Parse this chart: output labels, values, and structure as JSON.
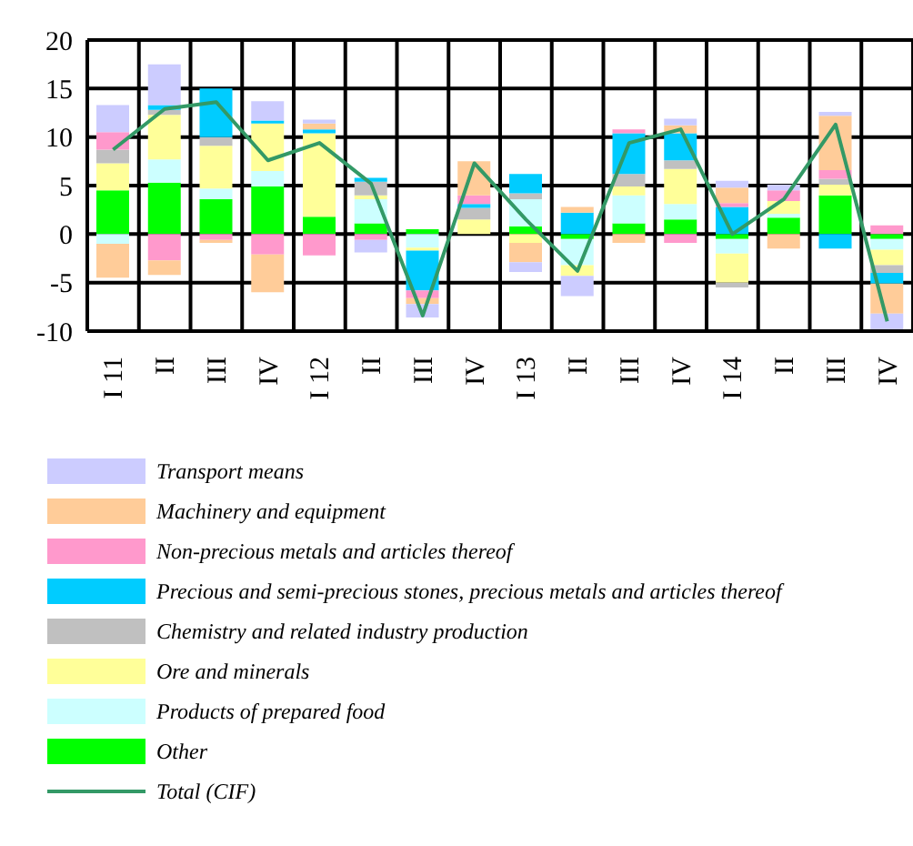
{
  "chart_data": {
    "type": "bar",
    "stacked": true,
    "categories": [
      "I 11",
      "II",
      "III",
      "IV",
      "I 12",
      "II",
      "III",
      "IV",
      "I 13",
      "II",
      "III",
      "IV",
      "I 14",
      "II",
      "III",
      "IV"
    ],
    "series": [
      {
        "name": "Other",
        "color": "#00ff00",
        "values": [
          4.5,
          5.3,
          3.6,
          4.9,
          1.8,
          1.1,
          0.5,
          0,
          0.8,
          -0.5,
          1.1,
          1.5,
          -0.5,
          1.7,
          4.0,
          -0.5
        ]
      },
      {
        "name": "Products of prepared food",
        "color": "#ccffff",
        "values": [
          -1.0,
          2.4,
          1.1,
          1.6,
          0,
          2.5,
          -1.4,
          0,
          2.8,
          -2.7,
          2.9,
          1.6,
          -1.5,
          0.4,
          0,
          -1.1
        ]
      },
      {
        "name": "Ore and minerals",
        "color": "#ffff99",
        "values": [
          2.8,
          4.6,
          4.4,
          4.9,
          8.6,
          0.4,
          -0.3,
          1.5,
          -0.9,
          -1.1,
          0.9,
          3.6,
          -3.0,
          1.3,
          1.1,
          -1.6
        ]
      },
      {
        "name": "Chemistry and related industry production",
        "color": "#c0c0c0",
        "values": [
          1.4,
          0.5,
          0.9,
          0,
          0,
          1.4,
          0,
          1.2,
          0.6,
          0,
          1.3,
          0.9,
          -0.5,
          0,
          0.6,
          -0.8
        ]
      },
      {
        "name": "Precious and semi-precious stones, precious metals and articles thereof",
        "color": "#00ccff",
        "values": [
          0,
          0.5,
          5.0,
          0.3,
          0.4,
          0.4,
          -4.1,
          0.4,
          2.0,
          2.2,
          4.2,
          2.8,
          2.8,
          0,
          -1.5,
          -1.1
        ]
      },
      {
        "name": "Non-precious metals and articles thereof",
        "color": "#ff99cc",
        "values": [
          1.8,
          -2.7,
          -0.6,
          -2.1,
          -2.2,
          -0.6,
          -0.8,
          0.9,
          0,
          0,
          0.4,
          -0.9,
          0.4,
          1.1,
          0.9,
          0.9
        ]
      },
      {
        "name": "Machinery and equipment",
        "color": "#ffcc99",
        "values": [
          -3.5,
          -1.5,
          -0.3,
          -3.9,
          0.6,
          0,
          -0.6,
          3.5,
          -2.0,
          0.6,
          -0.9,
          0.8,
          1.6,
          -1.5,
          5.6,
          -3.1
        ]
      },
      {
        "name": "Transport means",
        "color": "#ccccff",
        "values": [
          2.8,
          4.2,
          0,
          2.0,
          0.4,
          -1.3,
          -1.4,
          0,
          -1.0,
          -2.1,
          0,
          0.7,
          0.7,
          0.6,
          0.4,
          -1.9
        ]
      },
      {
        "name": "Total (CIF)",
        "type": "line",
        "color": "#339966",
        "values": [
          8.7,
          12.9,
          13.6,
          7.6,
          9.4,
          5.2,
          -8.4,
          7.3,
          1.5,
          -3.8,
          9.4,
          10.8,
          0,
          3.6,
          11.3,
          -9.0
        ]
      }
    ],
    "ylim": [
      -10,
      20
    ],
    "yticks": [
      -10,
      -5,
      0,
      5,
      10,
      15,
      20
    ],
    "grid": true,
    "legend": "bottom",
    "marker": "none"
  }
}
